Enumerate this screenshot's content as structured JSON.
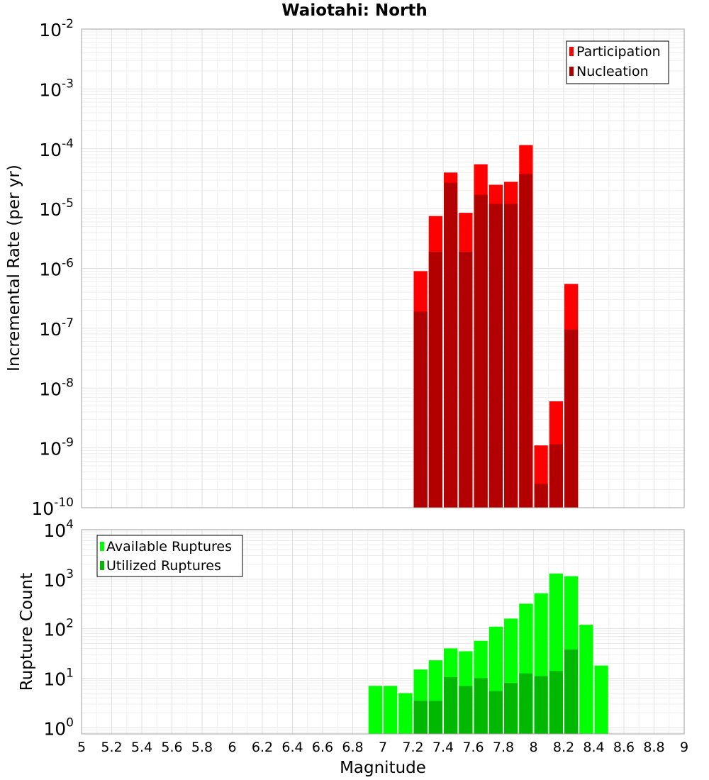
{
  "chart_data": [
    {
      "type": "bar",
      "title": "Waiotahi: North",
      "ylabel": "Incremental Rate (per yr)",
      "xlabel": "",
      "x_bin_width": 0.1,
      "xlim": [
        5,
        9
      ],
      "ylim": [
        1e-10,
        0.01
      ],
      "y_scale": "log",
      "grid": true,
      "legend_position": "top-right",
      "y_tick_exponents": [
        "-10",
        "-9",
        "-8",
        "-7",
        "-6",
        "-5",
        "-4",
        "-3",
        "-2"
      ],
      "x": [
        7.25,
        7.35,
        7.45,
        7.55,
        7.65,
        7.75,
        7.85,
        7.95,
        8.05,
        8.15,
        8.25
      ],
      "series": [
        {
          "name": "Participation",
          "color": "#ff0000",
          "values": [
            9e-07,
            7.5e-06,
            4e-05,
            8.5e-06,
            5.5e-05,
            2.5e-05,
            2.8e-05,
            0.000115,
            1.1e-09,
            6e-09,
            5.5e-07
          ]
        },
        {
          "name": "Nucleation",
          "color": "#b20000",
          "values": [
            1.9e-07,
            1.9e-06,
            2.7e-05,
            1.9e-06,
            1.7e-05,
            1.2e-05,
            1.2e-05,
            3.8e-05,
            2.5e-10,
            1.15e-09,
            9.5e-08
          ]
        }
      ]
    },
    {
      "type": "bar",
      "title": "",
      "ylabel": "Rupture Count",
      "xlabel": "Magnitude",
      "x_bin_width": 0.1,
      "xlim": [
        5,
        9
      ],
      "ylim": [
        0.75,
        10000
      ],
      "y_scale": "log",
      "grid": true,
      "legend_position": "top-left",
      "y_tick_exponents": [
        "0",
        "1",
        "2",
        "3",
        "4"
      ],
      "x_tick_labels": [
        "5",
        "5.2",
        "5.4",
        "5.6",
        "5.8",
        "6",
        "6.2",
        "6.4",
        "6.6",
        "6.8",
        "7",
        "7.2",
        "7.4",
        "7.6",
        "7.8",
        "8",
        "8.2",
        "8.4",
        "8.6",
        "8.8",
        "9"
      ],
      "x": [
        6.95,
        7.05,
        7.15,
        7.25,
        7.35,
        7.45,
        7.55,
        7.65,
        7.75,
        7.85,
        7.95,
        8.05,
        8.15,
        8.25,
        8.35,
        8.45
      ],
      "series": [
        {
          "name": "Available Ruptures",
          "color": "#00ff00",
          "values": [
            7,
            7,
            5,
            15,
            23,
            40,
            35,
            57,
            110,
            160,
            320,
            520,
            1300,
            1150,
            120,
            18
          ]
        },
        {
          "name": "Utilized Ruptures",
          "color": "#00b800",
          "values": [
            null,
            null,
            null,
            3.5,
            3.5,
            10.5,
            7,
            10,
            5.5,
            8,
            12.5,
            11,
            14,
            38,
            null,
            null
          ]
        }
      ]
    }
  ]
}
